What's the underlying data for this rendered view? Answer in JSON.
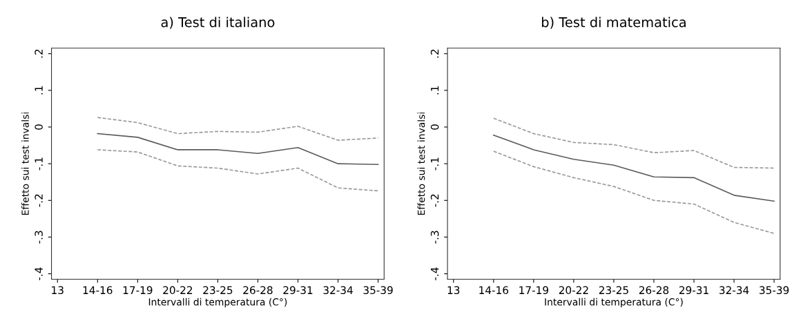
{
  "chart_data": [
    {
      "type": "line",
      "title": "a) Test di italiano",
      "xlabel": "Intervalli di temperatura (C°)",
      "ylabel": "Effetto sui test invalsi",
      "categories": [
        "13",
        "14-16",
        "17-19",
        "20-22",
        "23-25",
        "26-28",
        "29-31",
        "32-34",
        "35-39"
      ],
      "ylim": [
        -0.415,
        0.215
      ],
      "yticks": [
        {
          "value": -0.4,
          "label": "-.4"
        },
        {
          "value": -0.3,
          "label": "-.3"
        },
        {
          "value": -0.2,
          "label": "-.2"
        },
        {
          "value": -0.1,
          "label": "-.1"
        },
        0,
        {
          "value": 0.1,
          "label": ".1"
        },
        {
          "value": 0.2,
          "label": ".2"
        }
      ],
      "grid": false,
      "marker": "none",
      "series": [
        {
          "color": "#5a5a5a",
          "line_style": "solid",
          "values": [
            null,
            -0.018,
            -0.028,
            -0.062,
            -0.062,
            -0.072,
            -0.056,
            -0.1,
            -0.102
          ]
        },
        {
          "color": "#999999",
          "line_style": "dashed",
          "values": [
            null,
            0.026,
            0.012,
            -0.018,
            -0.012,
            -0.014,
            0.002,
            -0.036,
            -0.03
          ]
        },
        {
          "color": "#999999",
          "line_style": "dashed",
          "values": [
            null,
            -0.062,
            -0.068,
            -0.106,
            -0.112,
            -0.128,
            -0.112,
            -0.166,
            -0.174
          ]
        }
      ]
    },
    {
      "type": "line",
      "title": "b) Test di matematica",
      "xlabel": "Intervalli di temperatura (C°)",
      "ylabel": "Effetto sui test invalsi",
      "categories": [
        "13",
        "14-16",
        "17-19",
        "20-22",
        "23-25",
        "26-28",
        "29-31",
        "32-34",
        "35-39"
      ],
      "ylim": [
        -0.415,
        0.215
      ],
      "yticks": [
        {
          "value": -0.4,
          "label": "-.4"
        },
        {
          "value": -0.3,
          "label": "-.3"
        },
        {
          "value": -0.2,
          "label": "-.2"
        },
        {
          "value": -0.1,
          "label": "-.1"
        },
        0,
        {
          "value": 0.1,
          "label": ".1"
        },
        {
          "value": 0.2,
          "label": ".2"
        }
      ],
      "grid": false,
      "marker": "none",
      "series": [
        {
          "color": "#5a5a5a",
          "line_style": "solid",
          "values": [
            null,
            -0.022,
            -0.062,
            -0.088,
            -0.104,
            -0.136,
            -0.138,
            -0.186,
            -0.202
          ]
        },
        {
          "color": "#999999",
          "line_style": "dashed",
          "values": [
            null,
            0.024,
            -0.018,
            -0.042,
            -0.048,
            -0.07,
            -0.064,
            -0.11,
            -0.112
          ]
        },
        {
          "color": "#999999",
          "line_style": "dashed",
          "values": [
            null,
            -0.066,
            -0.108,
            -0.138,
            -0.162,
            -0.2,
            -0.21,
            -0.26,
            -0.29
          ]
        }
      ]
    }
  ]
}
